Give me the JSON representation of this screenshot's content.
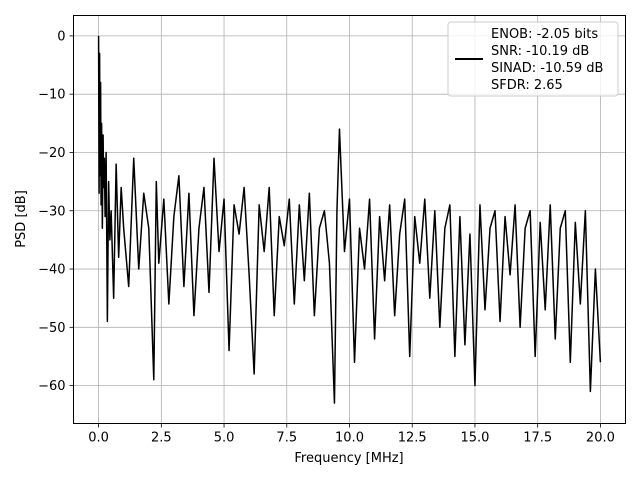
{
  "chart_data": {
    "type": "line",
    "title": "",
    "xlabel": "Frequency [MHz]",
    "ylabel": "PSD [dB]",
    "xlim": [
      -1.0,
      21.0
    ],
    "ylim": [
      -66.5,
      3.5
    ],
    "xticks": [
      0.0,
      2.5,
      5.0,
      7.5,
      10.0,
      12.5,
      15.0,
      17.5,
      20.0
    ],
    "xtick_labels": [
      "0.0",
      "2.5",
      "5.0",
      "7.5",
      "10.0",
      "12.5",
      "15.0",
      "17.5",
      "20.0"
    ],
    "yticks": [
      0,
      -10,
      -20,
      -30,
      -40,
      -50,
      -60
    ],
    "ytick_labels": [
      "0",
      "−10",
      "−20",
      "−30",
      "−40",
      "−50",
      "−60"
    ],
    "grid": true,
    "legend_position": "top-right",
    "legend": [
      "ENOB: -2.05 bits",
      "SNR: -10.19 dB",
      "SINAD: -10.59 dB",
      "SFDR: 2.65"
    ],
    "series_color": "#000000",
    "series": [
      {
        "x": [
          0.0,
          0.02,
          0.04,
          0.06,
          0.08,
          0.1,
          0.12,
          0.15,
          0.18,
          0.2,
          0.23,
          0.26,
          0.3,
          0.35,
          0.4,
          0.45,
          0.5,
          0.6,
          0.7,
          0.8,
          0.9,
          1.0,
          1.2,
          1.4,
          1.6,
          1.8,
          2.0,
          2.2,
          2.3,
          2.4,
          2.6,
          2.8,
          3.0,
          3.2,
          3.4,
          3.6,
          3.8,
          4.0,
          4.2,
          4.4,
          4.6,
          4.8,
          5.0,
          5.2,
          5.4,
          5.6,
          5.8,
          6.0,
          6.2,
          6.4,
          6.6,
          6.8,
          7.0,
          7.2,
          7.4,
          7.6,
          7.8,
          8.0,
          8.2,
          8.4,
          8.6,
          8.8,
          9.0,
          9.2,
          9.4,
          9.5,
          9.6,
          9.8,
          10.0,
          10.2,
          10.4,
          10.6,
          10.8,
          11.0,
          11.2,
          11.4,
          11.6,
          11.8,
          12.0,
          12.2,
          12.4,
          12.6,
          12.8,
          13.0,
          13.2,
          13.4,
          13.6,
          13.8,
          14.0,
          14.2,
          14.4,
          14.6,
          14.8,
          15.0,
          15.2,
          15.4,
          15.6,
          15.8,
          16.0,
          16.2,
          16.4,
          16.6,
          16.8,
          17.0,
          17.2,
          17.4,
          17.6,
          17.8,
          18.0,
          18.2,
          18.4,
          18.6,
          18.8,
          19.0,
          19.2,
          19.4,
          19.6,
          19.8,
          20.0
        ],
        "y": [
          0.0,
          -27.0,
          -3.0,
          -24.0,
          -8.0,
          -29.0,
          -15.0,
          -33.0,
          -17.0,
          -26.0,
          -21.0,
          -31.0,
          -20.0,
          -49.0,
          -25.0,
          -35.0,
          -30.0,
          -45.0,
          -22.0,
          -38.0,
          -26.0,
          -33.0,
          -43.0,
          -21.0,
          -40.0,
          -27.0,
          -33.0,
          -59.0,
          -25.0,
          -39.0,
          -28.0,
          -46.0,
          -31.0,
          -24.0,
          -43.0,
          -27.0,
          -48.0,
          -33.0,
          -26.0,
          -44.0,
          -21.0,
          -37.0,
          -28.0,
          -54.0,
          -29.0,
          -34.0,
          -26.0,
          -41.0,
          -58.0,
          -29.0,
          -37.0,
          -26.0,
          -48.0,
          -31.0,
          -36.0,
          -28.0,
          -46.0,
          -29.0,
          -42.0,
          -27.0,
          -48.0,
          -33.0,
          -30.0,
          -39.0,
          -63.0,
          -30.0,
          -16.0,
          -37.0,
          -28.0,
          -56.0,
          -33.0,
          -40.0,
          -28.0,
          -52.0,
          -31.0,
          -42.0,
          -29.0,
          -48.0,
          -34.0,
          -28.0,
          -55.0,
          -31.0,
          -39.0,
          -28.0,
          -45.0,
          -30.0,
          -50.0,
          -33.0,
          -29.0,
          -55.0,
          -31.0,
          -53.0,
          -34.0,
          -60.0,
          -29.0,
          -47.0,
          -33.0,
          -30.0,
          -49.0,
          -31.0,
          -41.0,
          -29.0,
          -50.0,
          -33.0,
          -30.0,
          -55.0,
          -32.0,
          -47.0,
          -29.0,
          -52.0,
          -33.0,
          -30.0,
          -56.0,
          -32.0,
          -46.0,
          -30.0,
          -61.0,
          -40.0,
          -56.0
        ]
      }
    ]
  }
}
